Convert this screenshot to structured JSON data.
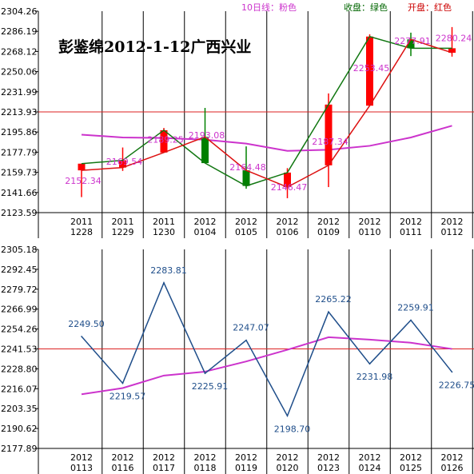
{
  "title": "彭鉴绵2012-1-12广西兴业",
  "legend": [
    {
      "text": "10日线：粉色",
      "color": "#cc33cc"
    },
    {
      "text": "收盘：绿色",
      "color": "#006600"
    },
    {
      "text": "开盘：红色",
      "color": "#cc0000"
    }
  ],
  "colors": {
    "ma": "#cc33cc",
    "close": "#117711",
    "open": "#dd1111",
    "up_candle": "#ff0000",
    "down_candle": "#008000",
    "refline": "#dd2222",
    "bottom_line": "#1f4e8a"
  },
  "chart_data": [
    {
      "type": "candlestick",
      "ylim": [
        2123.59,
        2304.26
      ],
      "ytick_labels": [
        "2304.26",
        "2286.19",
        "2268.12",
        "2250.06",
        "2231.99",
        "2213.93",
        "2195.86",
        "2177.79",
        "2159.73",
        "2141.66",
        "2123.59"
      ],
      "xtick_labels": [
        [
          "2011",
          "1228"
        ],
        [
          "2011",
          "1229"
        ],
        [
          "2011",
          "1230"
        ],
        [
          "2012",
          "0104"
        ],
        [
          "2012",
          "0105"
        ],
        [
          "2012",
          "0106"
        ],
        [
          "2012",
          "0109"
        ],
        [
          "2012",
          "0110"
        ],
        [
          "2012",
          "0111"
        ],
        [
          "2012",
          "0112"
        ]
      ],
      "reference_line": 2213.93,
      "candles": [
        {
          "open": 2161.5,
          "close": 2167.5,
          "high": 2167.5,
          "low": 2137.5
        },
        {
          "open": 2164.0,
          "close": 2170.5,
          "high": 2182.0,
          "low": 2161.0
        },
        {
          "open": 2177.5,
          "close": 2197.5,
          "high": 2199.5,
          "low": 2177.5
        },
        {
          "open": 2191.5,
          "close": 2168.0,
          "high": 2217.5,
          "low": 2168.0
        },
        {
          "open": 2161.5,
          "close": 2147.5,
          "high": 2183.0,
          "low": 2145.0
        },
        {
          "open": 2146.5,
          "close": 2159.5,
          "high": 2163.5,
          "low": 2136.5
        },
        {
          "open": 2166.0,
          "close": 2220.5,
          "high": 2230.5,
          "low": 2146.5
        },
        {
          "open": 2219.5,
          "close": 2281.5,
          "high": 2283.5,
          "low": 2219.5
        },
        {
          "open": 2279.0,
          "close": 2271.0,
          "high": 2285.0,
          "low": 2264.0
        },
        {
          "open": 2267.0,
          "close": 2271.0,
          "high": 2290.0,
          "low": 2263.5
        }
      ],
      "ma10": [
        2193.5,
        2191.0,
        2190.5,
        2189.0,
        2185.5,
        2179.0,
        2180.0,
        2183.5,
        2191.0,
        2201.5
      ],
      "data_labels": [
        "2152.34",
        "2169.54",
        "2189.25",
        "2193.08",
        "2164.48",
        "2146.47",
        "2187.34",
        "2253.45",
        "2277.91",
        "2280.24"
      ],
      "data_label_values": [
        2152.34,
        2169.54,
        2189.25,
        2193.08,
        2164.48,
        2146.47,
        2187.34,
        2253.45,
        2277.91,
        2280.24
      ]
    },
    {
      "type": "line",
      "ylim": [
        2177.89,
        2305.18
      ],
      "ytick_labels": [
        "2305.18",
        "2292.45",
        "2279.72",
        "2266.99",
        "2254.26",
        "2241.53",
        "2228.80",
        "2216.07",
        "2203.35",
        "2190.62",
        "2177.89"
      ],
      "xtick_labels": [
        [
          "2012",
          "0113"
        ],
        [
          "2012",
          "0116"
        ],
        [
          "2012",
          "0117"
        ],
        [
          "2012",
          "0118"
        ],
        [
          "2012",
          "0119"
        ],
        [
          "2012",
          "0120"
        ],
        [
          "2012",
          "0123"
        ],
        [
          "2012",
          "0124"
        ],
        [
          "2012",
          "0125"
        ],
        [
          "2012",
          "0126"
        ]
      ],
      "reference_line": 2241.53,
      "values": [
        2249.5,
        2219.57,
        2283.81,
        2225.91,
        2247.07,
        2198.7,
        2265.22,
        2231.98,
        2259.91,
        2226.75
      ],
      "trend": [
        2212.5,
        2216.5,
        2224.5,
        2227.0,
        2233.5,
        2241.0,
        2249.0,
        2247.5,
        2245.5,
        2241.5
      ],
      "data_labels": [
        "2249.50",
        "2219.57",
        "2283.81",
        "2225.91",
        "2247.07",
        "2198.70",
        "2265.22",
        "2231.98",
        "2259.91",
        "2226.75"
      ],
      "data_label_values": [
        2249.5,
        2219.57,
        2283.81,
        2225.91,
        2247.07,
        2198.7,
        2265.22,
        2231.98,
        2259.91,
        2226.75
      ]
    }
  ]
}
